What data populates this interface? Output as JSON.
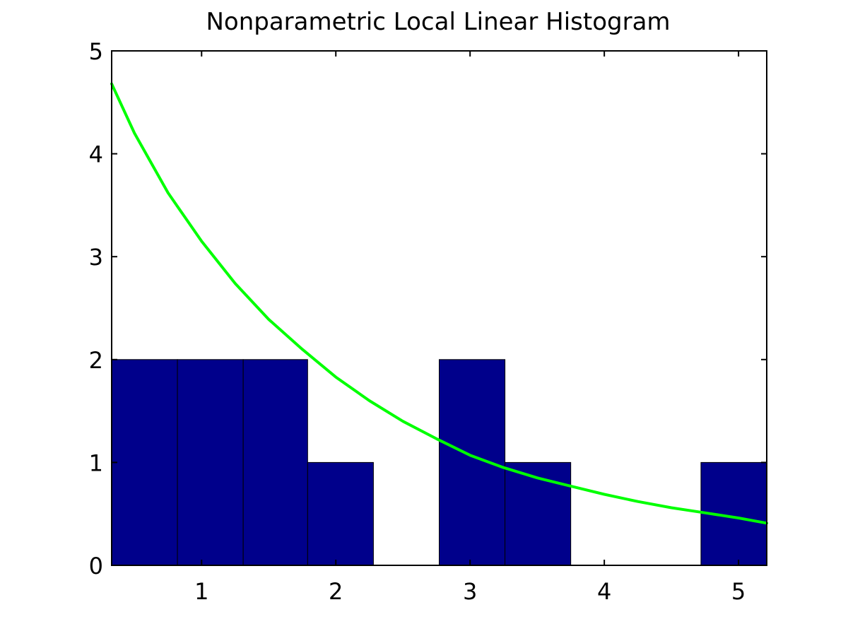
{
  "chart_data": {
    "type": "bar",
    "title": "Nonparametric Local Linear Histogram",
    "xlabel": "",
    "ylabel": "",
    "xlim": [
      0.33,
      5.21
    ],
    "ylim": [
      0,
      5
    ],
    "xticks": [
      1,
      2,
      3,
      4,
      5
    ],
    "yticks": [
      0,
      1,
      2,
      3,
      4,
      5
    ],
    "grid": false,
    "bins": [
      {
        "x0": 0.33,
        "x1": 0.82,
        "count": 2
      },
      {
        "x0": 0.82,
        "x1": 1.31,
        "count": 2
      },
      {
        "x0": 1.31,
        "x1": 1.79,
        "count": 2
      },
      {
        "x0": 1.79,
        "x1": 2.28,
        "count": 1
      },
      {
        "x0": 2.28,
        "x1": 2.77,
        "count": 0
      },
      {
        "x0": 2.77,
        "x1": 3.26,
        "count": 2
      },
      {
        "x0": 3.26,
        "x1": 3.75,
        "count": 1
      },
      {
        "x0": 3.75,
        "x1": 4.23,
        "count": 0
      },
      {
        "x0": 4.23,
        "x1": 4.72,
        "count": 0
      },
      {
        "x0": 4.72,
        "x1": 5.21,
        "count": 1
      }
    ],
    "curve": {
      "x": [
        0.33,
        0.5,
        0.75,
        1.0,
        1.25,
        1.5,
        1.75,
        2.0,
        2.25,
        2.5,
        2.75,
        3.0,
        3.25,
        3.5,
        3.75,
        4.0,
        4.25,
        4.5,
        4.75,
        5.0,
        5.21
      ],
      "y": [
        4.68,
        4.2,
        3.62,
        3.15,
        2.74,
        2.39,
        2.1,
        1.83,
        1.6,
        1.4,
        1.23,
        1.07,
        0.95,
        0.85,
        0.77,
        0.69,
        0.62,
        0.56,
        0.51,
        0.46,
        0.41
      ]
    },
    "colors": {
      "bar_fill": "#00008b",
      "bar_stroke": "#000000",
      "curve": "#00ff00",
      "axes": "#000000"
    }
  }
}
